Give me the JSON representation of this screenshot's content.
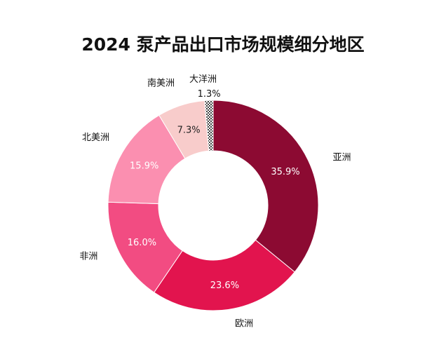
{
  "chart_data": {
    "type": "pie",
    "title": "2024 泵产品出口市场规模细分地区",
    "categories": [
      "亚洲",
      "欧洲",
      "非洲",
      "北美洲",
      "南美洲",
      "大洋洲"
    ],
    "values": [
      35.9,
      23.6,
      16.0,
      15.9,
      7.3,
      1.3
    ],
    "value_labels": [
      "35.9%",
      "23.6%",
      "16.0%",
      "15.9%",
      "7.3%",
      "1.3%"
    ],
    "colors": [
      "#8c0a32",
      "#e2144e",
      "#f24c82",
      "#fb8fb0",
      "#f8cccb",
      "#555555"
    ],
    "donut": true,
    "legend": "none"
  }
}
